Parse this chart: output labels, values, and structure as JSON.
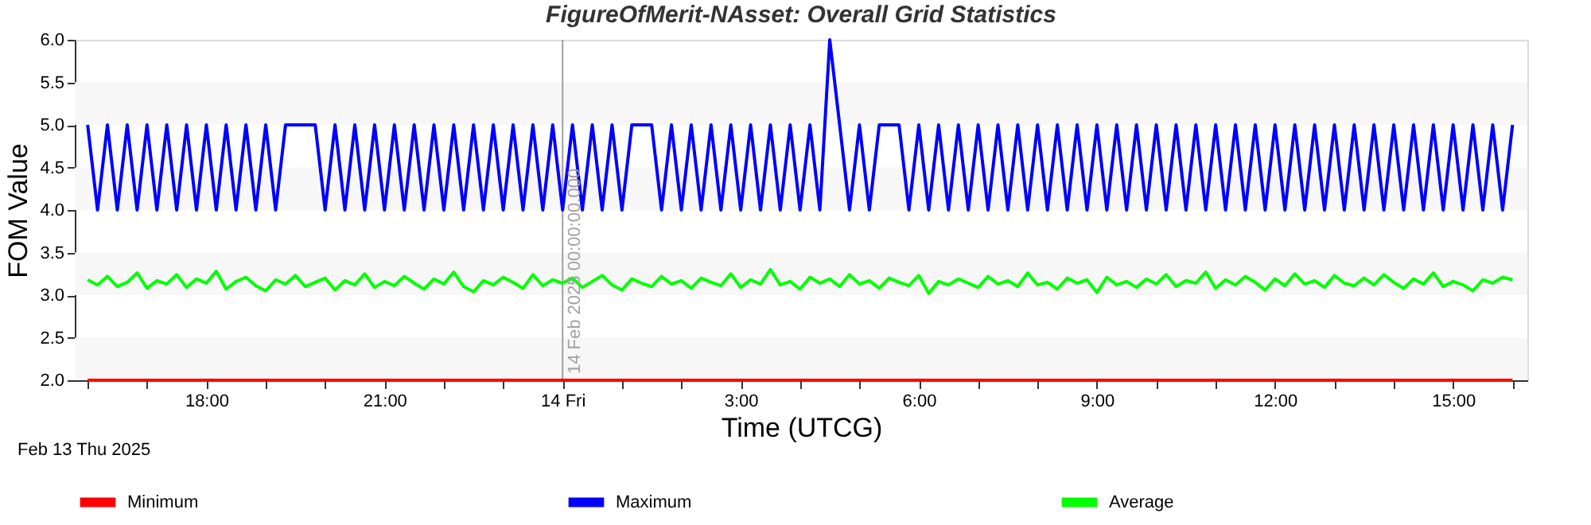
{
  "chart_data": {
    "type": "line",
    "title": "FigureOfMerit-NAsset:  Overall Grid Statistics",
    "xlabel": "Time (UTCG)",
    "ylabel": "FOM Value",
    "x": [
      "2025-02-13T16:00",
      "2025-02-13T16:10",
      "2025-02-13T16:20",
      "2025-02-13T16:30",
      "2025-02-13T16:40",
      "2025-02-13T16:50",
      "2025-02-13T17:00",
      "2025-02-13T17:10",
      "2025-02-13T17:20",
      "2025-02-13T17:30",
      "2025-02-13T17:40",
      "2025-02-13T17:50",
      "2025-02-13T18:00",
      "2025-02-13T18:10",
      "2025-02-13T18:20",
      "2025-02-13T18:30",
      "2025-02-13T18:40",
      "2025-02-13T18:50",
      "2025-02-13T19:00",
      "2025-02-13T19:10",
      "2025-02-13T19:20",
      "2025-02-13T19:30",
      "2025-02-13T19:40",
      "2025-02-13T19:50",
      "2025-02-13T20:00",
      "2025-02-13T20:10",
      "2025-02-13T20:20",
      "2025-02-13T20:30",
      "2025-02-13T20:40",
      "2025-02-13T20:50",
      "2025-02-13T21:00",
      "2025-02-13T21:10",
      "2025-02-13T21:20",
      "2025-02-13T21:30",
      "2025-02-13T21:40",
      "2025-02-13T21:50",
      "2025-02-13T22:00",
      "2025-02-13T22:10",
      "2025-02-13T22:20",
      "2025-02-13T22:30",
      "2025-02-13T22:40",
      "2025-02-13T22:50",
      "2025-02-13T23:00",
      "2025-02-13T23:10",
      "2025-02-13T23:20",
      "2025-02-13T23:30",
      "2025-02-13T23:40",
      "2025-02-13T23:50",
      "2025-02-14T00:00",
      "2025-02-14T00:10",
      "2025-02-14T00:20",
      "2025-02-14T00:30",
      "2025-02-14T00:40",
      "2025-02-14T00:50",
      "2025-02-14T01:00",
      "2025-02-14T01:10",
      "2025-02-14T01:20",
      "2025-02-14T01:30",
      "2025-02-14T01:40",
      "2025-02-14T01:50",
      "2025-02-14T02:00",
      "2025-02-14T02:10",
      "2025-02-14T02:20",
      "2025-02-14T02:30",
      "2025-02-14T02:40",
      "2025-02-14T02:50",
      "2025-02-14T03:00",
      "2025-02-14T03:10",
      "2025-02-14T03:20",
      "2025-02-14T03:30",
      "2025-02-14T03:40",
      "2025-02-14T03:50",
      "2025-02-14T04:00",
      "2025-02-14T04:10",
      "2025-02-14T04:20",
      "2025-02-14T04:30",
      "2025-02-14T04:40",
      "2025-02-14T04:50",
      "2025-02-14T05:00",
      "2025-02-14T05:10",
      "2025-02-14T05:20",
      "2025-02-14T05:30",
      "2025-02-14T05:40",
      "2025-02-14T05:50",
      "2025-02-14T06:00",
      "2025-02-14T06:10",
      "2025-02-14T06:20",
      "2025-02-14T06:30",
      "2025-02-14T06:40",
      "2025-02-14T06:50",
      "2025-02-14T07:00",
      "2025-02-14T07:10",
      "2025-02-14T07:20",
      "2025-02-14T07:30",
      "2025-02-14T07:40",
      "2025-02-14T07:50",
      "2025-02-14T08:00",
      "2025-02-14T08:10",
      "2025-02-14T08:20",
      "2025-02-14T08:30",
      "2025-02-14T08:40",
      "2025-02-14T08:50",
      "2025-02-14T09:00",
      "2025-02-14T09:10",
      "2025-02-14T09:20",
      "2025-02-14T09:30",
      "2025-02-14T09:40",
      "2025-02-14T09:50",
      "2025-02-14T10:00",
      "2025-02-14T10:10",
      "2025-02-14T10:20",
      "2025-02-14T10:30",
      "2025-02-14T10:40",
      "2025-02-14T10:50",
      "2025-02-14T11:00",
      "2025-02-14T11:10",
      "2025-02-14T11:20",
      "2025-02-14T11:30",
      "2025-02-14T11:40",
      "2025-02-14T11:50",
      "2025-02-14T12:00",
      "2025-02-14T12:10",
      "2025-02-14T12:20",
      "2025-02-14T12:30",
      "2025-02-14T12:40",
      "2025-02-14T12:50",
      "2025-02-14T13:00",
      "2025-02-14T13:10",
      "2025-02-14T13:20",
      "2025-02-14T13:30",
      "2025-02-14T13:40",
      "2025-02-14T13:50",
      "2025-02-14T14:00",
      "2025-02-14T14:10",
      "2025-02-14T14:20",
      "2025-02-14T14:30",
      "2025-02-14T14:40",
      "2025-02-14T14:50",
      "2025-02-14T15:00",
      "2025-02-14T15:10",
      "2025-02-14T15:20",
      "2025-02-14T15:30",
      "2025-02-14T15:40",
      "2025-02-14T15:50",
      "2025-02-14T16:00"
    ],
    "series": [
      {
        "name": "Minimum",
        "color": "#ff0000",
        "x": [
          "2025-02-13T16:00",
          "2025-02-14T16:00"
        ],
        "values": [
          2.0,
          2.0
        ]
      },
      {
        "name": "Maximum",
        "color": "#0000ff",
        "values": [
          5,
          4,
          5,
          4,
          5,
          4,
          5,
          4,
          5,
          4,
          5,
          4,
          5,
          4,
          5,
          4,
          5,
          4,
          5,
          4,
          5,
          5,
          5,
          5,
          4,
          5,
          4,
          5,
          4,
          5,
          4,
          5,
          4,
          5,
          4,
          5,
          4,
          5,
          4,
          5,
          4,
          5,
          4,
          5,
          4,
          5,
          4,
          5,
          4,
          5,
          4,
          5,
          4,
          5,
          4,
          5,
          5,
          5,
          4,
          5,
          4,
          5,
          4,
          5,
          4,
          5,
          4,
          5,
          4,
          5,
          4,
          5,
          4,
          5,
          4,
          6,
          5,
          4,
          5,
          4,
          5,
          5,
          5,
          4,
          5,
          4,
          5,
          4,
          5,
          4,
          5,
          4,
          5,
          4,
          5,
          4,
          5,
          4,
          5,
          4,
          5,
          4,
          5,
          4,
          5,
          4,
          5,
          4,
          5,
          4,
          5,
          4,
          5,
          4,
          5,
          4,
          5,
          4,
          5,
          4,
          5,
          4,
          5,
          4,
          5,
          4,
          5,
          4,
          5,
          4,
          5,
          4,
          5,
          4,
          5,
          4,
          5,
          4,
          5,
          4,
          5,
          4,
          5,
          4,
          5
        ]
      },
      {
        "name": "Average",
        "color": "#00ff00",
        "values": [
          3.18,
          3.12,
          3.22,
          3.1,
          3.15,
          3.26,
          3.08,
          3.17,
          3.13,
          3.24,
          3.09,
          3.19,
          3.14,
          3.28,
          3.07,
          3.16,
          3.21,
          3.11,
          3.05,
          3.18,
          3.13,
          3.23,
          3.1,
          3.15,
          3.2,
          3.06,
          3.17,
          3.12,
          3.25,
          3.09,
          3.16,
          3.11,
          3.22,
          3.14,
          3.07,
          3.19,
          3.13,
          3.27,
          3.1,
          3.04,
          3.17,
          3.12,
          3.21,
          3.15,
          3.08,
          3.24,
          3.11,
          3.18,
          3.14,
          3.2,
          3.09,
          3.16,
          3.23,
          3.12,
          3.06,
          3.19,
          3.14,
          3.1,
          3.22,
          3.13,
          3.17,
          3.08,
          3.2,
          3.15,
          3.11,
          3.25,
          3.09,
          3.18,
          3.13,
          3.3,
          3.12,
          3.16,
          3.07,
          3.21,
          3.14,
          3.19,
          3.1,
          3.24,
          3.13,
          3.17,
          3.08,
          3.2,
          3.15,
          3.11,
          3.23,
          3.02,
          3.16,
          3.12,
          3.19,
          3.14,
          3.09,
          3.22,
          3.13,
          3.17,
          3.1,
          3.26,
          3.12,
          3.15,
          3.07,
          3.2,
          3.14,
          3.18,
          3.03,
          3.21,
          3.12,
          3.16,
          3.09,
          3.19,
          3.13,
          3.24,
          3.1,
          3.17,
          3.14,
          3.27,
          3.08,
          3.18,
          3.12,
          3.22,
          3.15,
          3.06,
          3.19,
          3.11,
          3.25,
          3.13,
          3.17,
          3.09,
          3.23,
          3.14,
          3.11,
          3.2,
          3.12,
          3.24,
          3.15,
          3.08,
          3.19,
          3.13,
          3.26,
          3.1,
          3.16,
          3.12,
          3.05,
          3.18,
          3.14,
          3.21,
          3.18
        ]
      }
    ],
    "xlim": [
      "2025-02-13T15:47",
      "2025-02-14T16:15"
    ],
    "xticks": [
      {
        "value": "2025-02-13T16:00",
        "label": null
      },
      {
        "value": "2025-02-13T17:00",
        "label": null
      },
      {
        "value": "2025-02-13T18:00",
        "label": "18:00"
      },
      {
        "value": "2025-02-13T19:00",
        "label": null
      },
      {
        "value": "2025-02-13T20:00",
        "label": null
      },
      {
        "value": "2025-02-13T21:00",
        "label": "21:00"
      },
      {
        "value": "2025-02-13T22:00",
        "label": null
      },
      {
        "value": "2025-02-13T23:00",
        "label": null
      },
      {
        "value": "2025-02-14T00:00",
        "label": "14 Fri"
      },
      {
        "value": "2025-02-14T01:00",
        "label": null
      },
      {
        "value": "2025-02-14T02:00",
        "label": null
      },
      {
        "value": "2025-02-14T03:00",
        "label": "3:00"
      },
      {
        "value": "2025-02-14T04:00",
        "label": null
      },
      {
        "value": "2025-02-14T05:00",
        "label": null
      },
      {
        "value": "2025-02-14T06:00",
        "label": "6:00"
      },
      {
        "value": "2025-02-14T07:00",
        "label": null
      },
      {
        "value": "2025-02-14T08:00",
        "label": null
      },
      {
        "value": "2025-02-14T09:00",
        "label": "9:00"
      },
      {
        "value": "2025-02-14T10:00",
        "label": null
      },
      {
        "value": "2025-02-14T11:00",
        "label": null
      },
      {
        "value": "2025-02-14T12:00",
        "label": "12:00"
      },
      {
        "value": "2025-02-14T13:00",
        "label": null
      },
      {
        "value": "2025-02-14T14:00",
        "label": null
      },
      {
        "value": "2025-02-14T15:00",
        "label": "15:00"
      },
      {
        "value": "2025-02-14T16:00",
        "label": null
      }
    ],
    "ylim": [
      2.0,
      6.0
    ],
    "yticks": [
      {
        "value": 2,
        "label": "2.0"
      },
      {
        "value": 2.5,
        "label": "2.5"
      },
      {
        "value": 3,
        "label": "3.0"
      },
      {
        "value": 3.5,
        "label": "3.5"
      },
      {
        "value": 4,
        "label": "4.0"
      },
      {
        "value": 4.5,
        "label": "4.5"
      },
      {
        "value": 5,
        "label": "5.0"
      },
      {
        "value": 5.5,
        "label": "5.5"
      },
      {
        "value": 6,
        "label": "6.0"
      }
    ],
    "bands": [
      {
        "axis": "y",
        "from": 2.0,
        "to": 2.5,
        "color": "#f7f7f7"
      },
      {
        "axis": "y",
        "from": 3.0,
        "to": 3.5,
        "color": "#f7f7f7"
      },
      {
        "axis": "y",
        "from": 4.0,
        "to": 4.5,
        "color": "#f7f7f7"
      },
      {
        "axis": "y",
        "from": 5.0,
        "to": 5.5,
        "color": "#f7f7f7"
      }
    ],
    "legend": "bottom",
    "ref_lines": [
      {
        "axis": "x",
        "value": "2025-02-14T00:00",
        "label": "14 Feb 2025 00:00:00.000",
        "color": "#a0a0a0"
      }
    ],
    "annotations": [
      "Feb 13 Thu 2025"
    ]
  }
}
